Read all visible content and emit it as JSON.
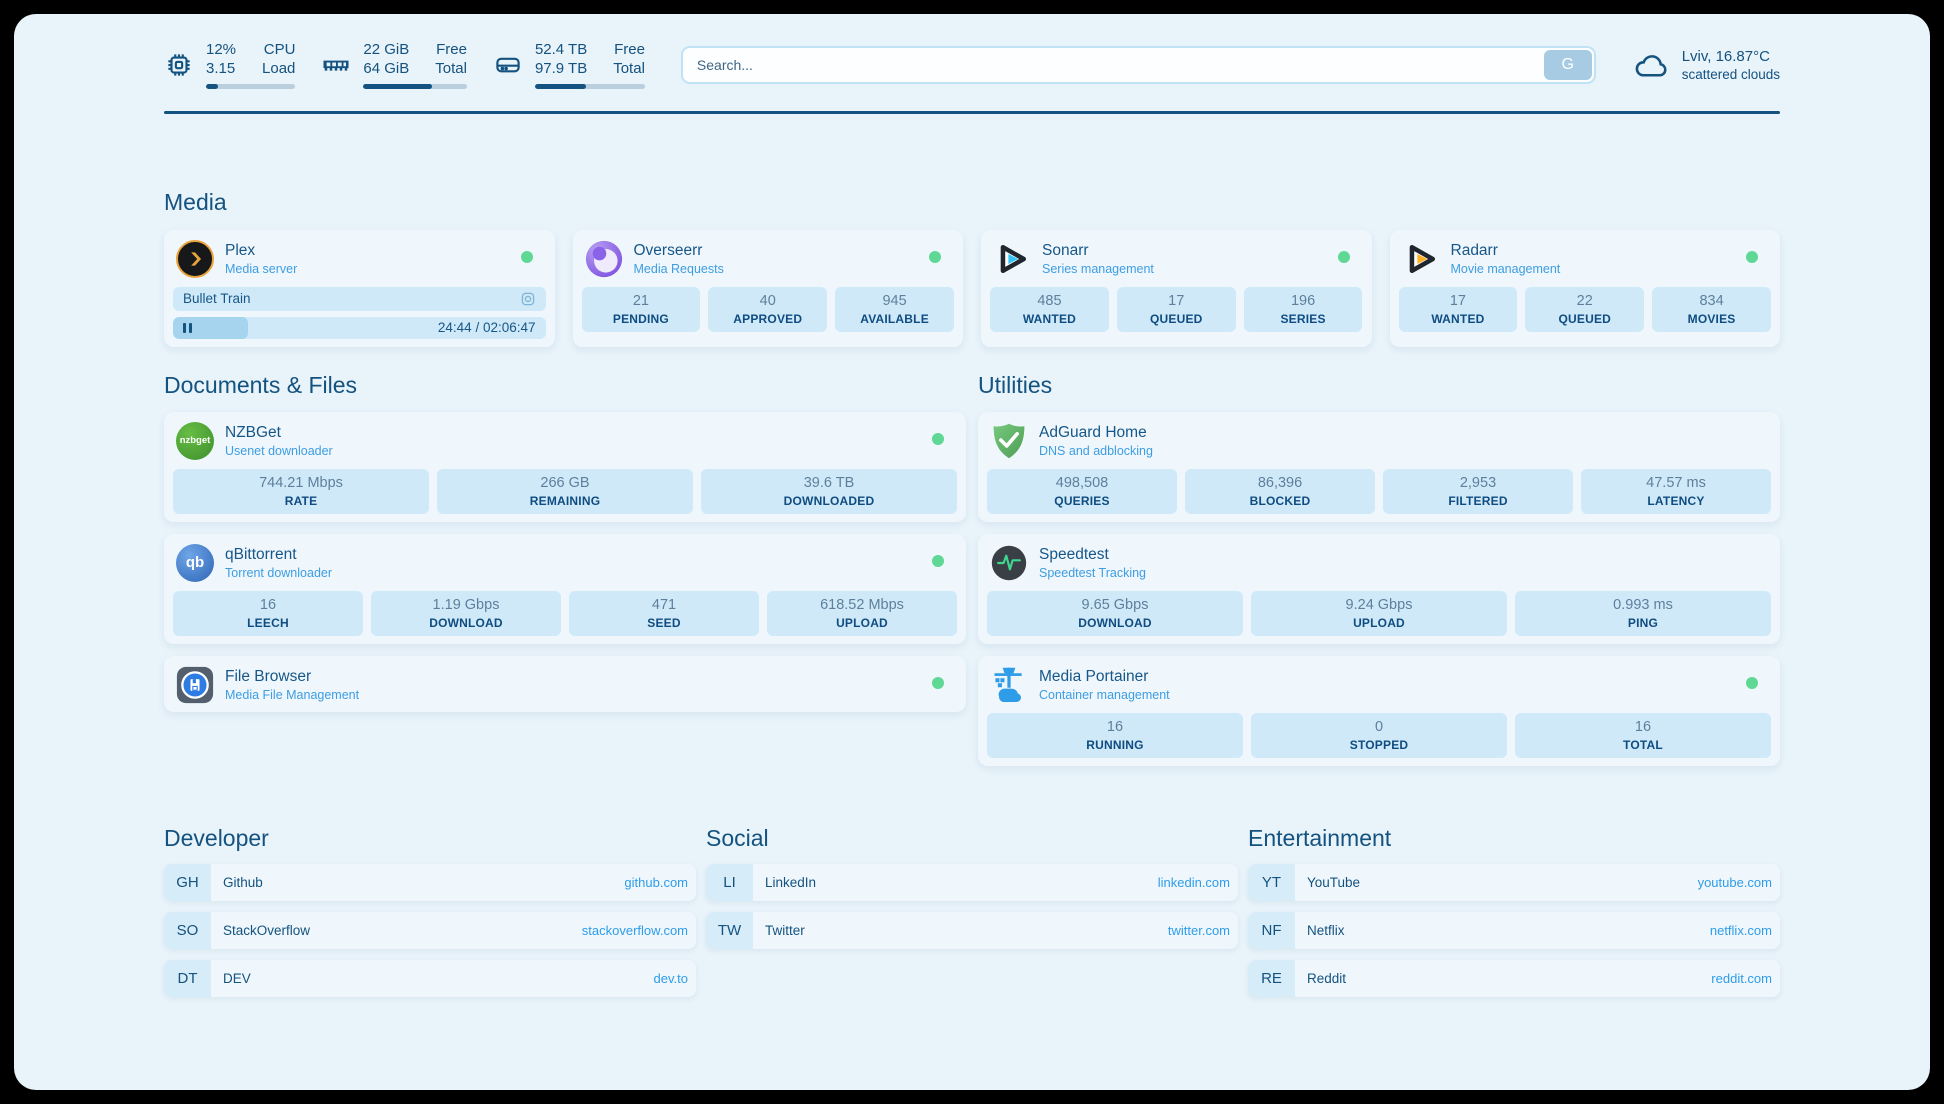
{
  "colors": {
    "accent": "#14527f",
    "link_blue": "#3d9de2",
    "tile_bg": "#cfe9f8",
    "status_green": "#5fd795",
    "page_bg": "#e8f3fa"
  },
  "header": {
    "cpu": {
      "value1": "12%",
      "value2": "3.15",
      "label1": "CPU",
      "label2": "Load",
      "progress": 13
    },
    "ram": {
      "value1": "22 GiB",
      "value2": "64 GiB",
      "label1": "Free",
      "label2": "Total",
      "progress": 66
    },
    "disk": {
      "value1": "52.4 TB",
      "value2": "97.9 TB",
      "label1": "Free",
      "label2": "Total",
      "progress": 46
    },
    "search": {
      "placeholder": "Search...",
      "button_label": "G"
    },
    "weather": {
      "location": "Lviv, 16.87°C",
      "condition": "scattered clouds"
    }
  },
  "sections": {
    "media": "Media",
    "documents": "Documents & Files",
    "utilities": "Utilities",
    "developer": "Developer",
    "social": "Social",
    "entertainment": "Entertainment"
  },
  "apps": {
    "plex": {
      "name": "Plex",
      "subtitle": "Media server",
      "now_playing": "Bullet Train",
      "time": "24:44 / 02:06:47",
      "progress": 20
    },
    "overseerr": {
      "name": "Overseerr",
      "subtitle": "Media Requests",
      "stats": [
        {
          "value": "21",
          "label": "PENDING"
        },
        {
          "value": "40",
          "label": "APPROVED"
        },
        {
          "value": "945",
          "label": "AVAILABLE"
        }
      ]
    },
    "sonarr": {
      "name": "Sonarr",
      "subtitle": "Series management",
      "stats": [
        {
          "value": "485",
          "label": "WANTED"
        },
        {
          "value": "17",
          "label": "QUEUED"
        },
        {
          "value": "196",
          "label": "SERIES"
        }
      ]
    },
    "radarr": {
      "name": "Radarr",
      "subtitle": "Movie management",
      "stats": [
        {
          "value": "17",
          "label": "WANTED"
        },
        {
          "value": "22",
          "label": "QUEUED"
        },
        {
          "value": "834",
          "label": "MOVIES"
        }
      ]
    },
    "nzbget": {
      "name": "NZBGet",
      "subtitle": "Usenet downloader",
      "icon_text": "nzbget",
      "stats": [
        {
          "value": "744.21 Mbps",
          "label": "RATE"
        },
        {
          "value": "266 GB",
          "label": "REMAINING"
        },
        {
          "value": "39.6 TB",
          "label": "DOWNLOADED"
        }
      ]
    },
    "adguard": {
      "name": "AdGuard Home",
      "subtitle": "DNS and adblocking",
      "stats": [
        {
          "value": "498,508",
          "label": "QUERIES"
        },
        {
          "value": "86,396",
          "label": "BLOCKED"
        },
        {
          "value": "2,953",
          "label": "FILTERED"
        },
        {
          "value": "47.57 ms",
          "label": "LATENCY"
        }
      ]
    },
    "qbittorrent": {
      "name": "qBittorrent",
      "subtitle": "Torrent downloader",
      "icon_text": "qb",
      "stats": [
        {
          "value": "16",
          "label": "LEECH"
        },
        {
          "value": "1.19 Gbps",
          "label": "DOWNLOAD"
        },
        {
          "value": "471",
          "label": "SEED"
        },
        {
          "value": "618.52 Mbps",
          "label": "UPLOAD"
        }
      ]
    },
    "speedtest": {
      "name": "Speedtest",
      "subtitle": "Speedtest Tracking",
      "stats": [
        {
          "value": "9.65 Gbps",
          "label": "DOWNLOAD"
        },
        {
          "value": "9.24 Gbps",
          "label": "UPLOAD"
        },
        {
          "value": "0.993 ms",
          "label": "PING"
        }
      ]
    },
    "filebrowser": {
      "name": "File Browser",
      "subtitle": "Media File Management"
    },
    "portainer": {
      "name": "Media Portainer",
      "subtitle": "Container management",
      "stats": [
        {
          "value": "16",
          "label": "RUNNING"
        },
        {
          "value": "0",
          "label": "STOPPED"
        },
        {
          "value": "16",
          "label": "TOTAL"
        }
      ]
    }
  },
  "bookmarks": {
    "developer": [
      {
        "tag": "GH",
        "name": "Github",
        "url": "github.com"
      },
      {
        "tag": "SO",
        "name": "StackOverflow",
        "url": "stackoverflow.com"
      },
      {
        "tag": "DT",
        "name": "DEV",
        "url": "dev.to"
      }
    ],
    "social": [
      {
        "tag": "LI",
        "name": "LinkedIn",
        "url": "linkedin.com"
      },
      {
        "tag": "TW",
        "name": "Twitter",
        "url": "twitter.com"
      }
    ],
    "entertainment": [
      {
        "tag": "YT",
        "name": "YouTube",
        "url": "youtube.com"
      },
      {
        "tag": "NF",
        "name": "Netflix",
        "url": "netflix.com"
      },
      {
        "tag": "RE",
        "name": "Reddit",
        "url": "reddit.com"
      }
    ]
  }
}
